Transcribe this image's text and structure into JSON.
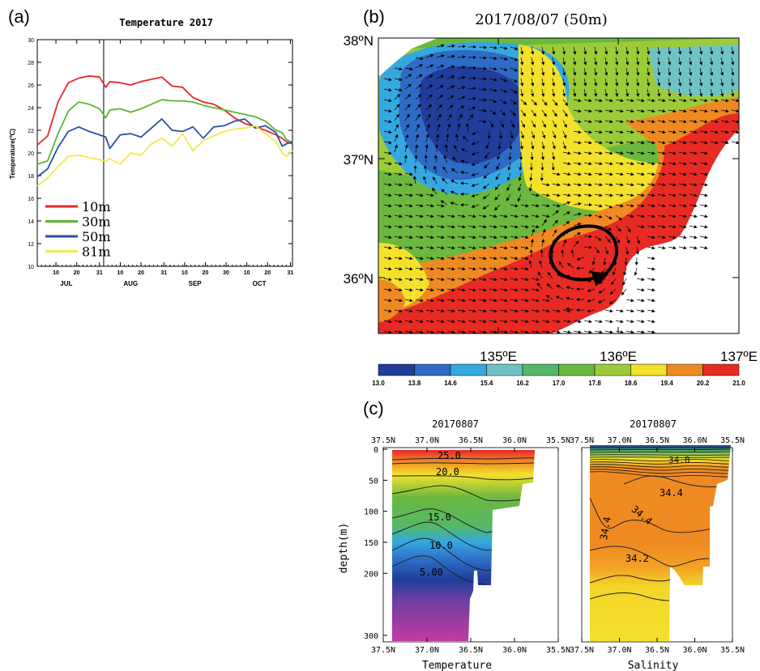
{
  "panel_labels": {
    "a": "(a)",
    "b": "(b)",
    "c": "(c)"
  },
  "chart_data": [
    {
      "type": "line",
      "panel": "a",
      "title": "Temperature  2017",
      "ylabel": "Temperature(℃)",
      "ylim": [
        10,
        30
      ],
      "yticks": [
        10,
        12,
        14,
        16,
        18,
        20,
        22,
        24,
        26,
        28,
        30
      ],
      "xlim": [
        0,
        123
      ],
      "xticks": [
        {
          "x": 9,
          "label": "10"
        },
        {
          "x": 19,
          "label": "20"
        },
        {
          "x": 30,
          "label": "31"
        },
        {
          "x": 40,
          "label": "10"
        },
        {
          "x": 50,
          "label": "20"
        },
        {
          "x": 61,
          "label": "31"
        },
        {
          "x": 71,
          "label": "10"
        },
        {
          "x": 81,
          "label": "20"
        },
        {
          "x": 91,
          "label": "30"
        },
        {
          "x": 101,
          "label": "10"
        },
        {
          "x": 111,
          "label": "20"
        },
        {
          "x": 122,
          "label": "31"
        }
      ],
      "months": [
        {
          "x": 14,
          "label": "JUL"
        },
        {
          "x": 45,
          "label": "AUG"
        },
        {
          "x": 76,
          "label": "SEP"
        },
        {
          "x": 107,
          "label": "OCT"
        }
      ],
      "vline_x": 32,
      "legend_position": "bottom-left",
      "x": [
        0,
        5,
        10,
        15,
        20,
        25,
        30,
        33,
        35,
        40,
        45,
        50,
        55,
        60,
        65,
        70,
        75,
        80,
        85,
        90,
        95,
        100,
        105,
        110,
        115,
        118,
        120,
        123
      ],
      "series": [
        {
          "name": "10m",
          "color": "#e8262a",
          "values": [
            20.7,
            21.5,
            24.5,
            26.2,
            26.6,
            26.8,
            26.7,
            25.8,
            26.3,
            26.2,
            26.0,
            26.3,
            26.5,
            26.7,
            25.9,
            25.8,
            24.9,
            24.5,
            24.3,
            23.8,
            23.1,
            22.6,
            22.3,
            22.0,
            21.6,
            21.3,
            21.0,
            20.8
          ]
        },
        {
          "name": "30m",
          "color": "#5cb532",
          "values": [
            19.0,
            19.3,
            21.7,
            23.7,
            24.5,
            24.3,
            23.9,
            23.1,
            23.8,
            23.9,
            23.6,
            23.9,
            24.3,
            24.7,
            24.6,
            24.6,
            24.5,
            24.2,
            24.0,
            23.8,
            23.6,
            23.4,
            23.2,
            22.8,
            22.0,
            21.8,
            21.2,
            20.9
          ]
        },
        {
          "name": "50m",
          "color": "#2b4fa6",
          "values": [
            17.9,
            18.6,
            20.5,
            21.9,
            22.3,
            21.9,
            21.6,
            21.4,
            20.4,
            21.6,
            21.7,
            21.4,
            22.2,
            23.0,
            22.0,
            21.9,
            22.3,
            21.3,
            22.3,
            22.4,
            22.8,
            23.0,
            22.2,
            22.4,
            21.8,
            20.6,
            20.8,
            21.0
          ]
        },
        {
          "name": "81m",
          "color": "#f2ea4e",
          "values": [
            17.1,
            17.8,
            18.8,
            19.7,
            19.8,
            19.6,
            19.4,
            19.3,
            19.5,
            19.0,
            20.0,
            19.8,
            20.8,
            21.3,
            20.6,
            21.7,
            20.2,
            21.1,
            21.5,
            21.9,
            22.1,
            22.2,
            22.4,
            21.7,
            21.0,
            20.0,
            19.7,
            20.2
          ]
        }
      ]
    },
    {
      "type": "heatmap",
      "panel": "b",
      "title": "2017/08/07   (50m)",
      "xticks": [
        "135ºE",
        "136ºE",
        "137ºE"
      ],
      "yticks": [
        "36ºN",
        "37ºN",
        "38ºN"
      ],
      "colorbar": {
        "ticks": [
          "13.0",
          "13.8",
          "14.6",
          "15.4",
          "16.2",
          "17.0",
          "17.8",
          "18.6",
          "19.4",
          "20.2",
          "21.0"
        ],
        "colors": [
          "#1f3d99",
          "#2d6bc4",
          "#35a8e0",
          "#6fc3c4",
          "#55b868",
          "#6bb83e",
          "#9ccb3a",
          "#f3e12c",
          "#ef8a22",
          "#e82a24"
        ]
      }
    },
    {
      "type": "heatmap",
      "panel": "c-temperature",
      "title": "20170807",
      "xlabel": "Temperature",
      "ylabel": "depth(m)",
      "xticks": [
        "37.5N",
        "37.0N",
        "36.5N",
        "36.0N",
        "35.5N"
      ],
      "yticks": [
        "0",
        "50",
        "100",
        "150",
        "200",
        "300"
      ],
      "contour_labels": [
        "25.0",
        "20.0",
        "15.0",
        "10.0",
        "5.00"
      ]
    },
    {
      "type": "heatmap",
      "panel": "c-salinity",
      "title": "20170807",
      "xlabel": "Salinity",
      "xticks": [
        "37.5N",
        "37.0N",
        "36.5N",
        "36.0N",
        "35.5N"
      ],
      "contour_labels": [
        "34.4",
        "34.4",
        "34.4",
        "34.2",
        "34.8"
      ]
    }
  ]
}
